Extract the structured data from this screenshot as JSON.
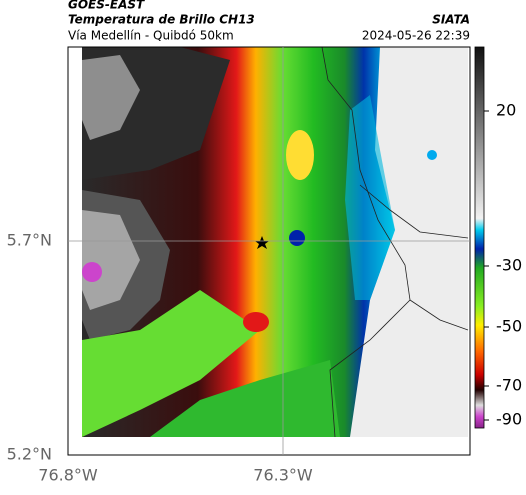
{
  "header": {
    "source": "GOES-EAST",
    "title": "Temperatura de Brillo CH13",
    "route": "Vía Medellín - Quibdó 50km",
    "credit": "SIATA",
    "timestamp": "2024-05-26 22:39"
  },
  "axes": {
    "lat_labels": [
      "5.7°N",
      "5.2°N"
    ],
    "lon_labels": [
      "76.8°W",
      "76.3°W"
    ]
  },
  "colorbar": {
    "ticks": [
      "20",
      "-30",
      "-50",
      "-70",
      "-90"
    ]
  }
}
